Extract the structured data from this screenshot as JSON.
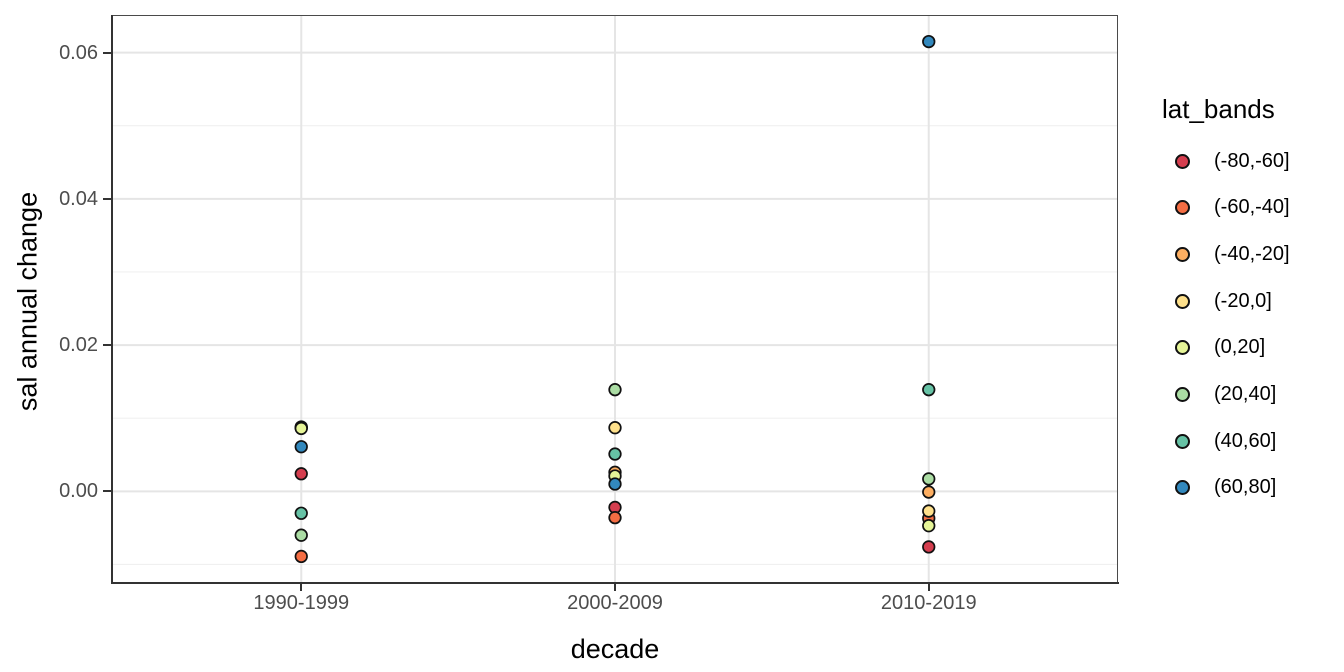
{
  "chart_data": {
    "type": "scatter",
    "title": "",
    "xlabel": "decade",
    "ylabel": "sal annual change",
    "legend_title": "lat_bands",
    "legend_position": "right",
    "grid": true,
    "categories": [
      "1990-1999",
      "2000-2009",
      "2010-2019"
    ],
    "series": [
      {
        "name": "(-80,-60]",
        "color": "#d53e4f",
        "values": [
          0.0024,
          -0.0022,
          -0.0076
        ]
      },
      {
        "name": "(-60,-40]",
        "color": "#f46d43",
        "values": [
          -0.0089,
          -0.0036,
          -0.0037
        ]
      },
      {
        "name": "(-40,-20]",
        "color": "#fdae61",
        "values": [
          0.0087,
          0.0026,
          -0.0001
        ]
      },
      {
        "name": "(-20,0]",
        "color": "#fee08b",
        "values": [
          0.0088,
          0.0087,
          -0.0027
        ]
      },
      {
        "name": "(0,20]",
        "color": "#e6f598",
        "values": [
          0.0086,
          0.0021,
          -0.0047
        ]
      },
      {
        "name": "(20,40]",
        "color": "#abdda4",
        "values": [
          -0.006,
          0.0139,
          0.0017
        ]
      },
      {
        "name": "(40,60]",
        "color": "#66c2a5",
        "values": [
          -0.003,
          0.0051,
          0.0139
        ]
      },
      {
        "name": "(60,80]",
        "color": "#3288bd",
        "values": [
          0.0061,
          0.001,
          0.0615
        ]
      }
    ],
    "y_ticks": [
      0.0,
      0.02,
      0.04,
      0.06
    ],
    "y_tick_labels": [
      "0.00",
      "0.02",
      "0.04",
      "0.06"
    ],
    "y_minor_ticks": [
      -0.01,
      0.01,
      0.03,
      0.05
    ],
    "ylim": [
      -0.0124,
      0.065
    ],
    "x_positions": [
      0.1875,
      0.5,
      0.8125
    ]
  },
  "style": {
    "background": "#ffffff",
    "grid_major": "#e5e5e5",
    "grid_minor": "#f0f0f0",
    "panel_border": "#4a4a4a",
    "axis_line": "#333333",
    "axis_text": "#4d4d4d",
    "title_text": "#000000",
    "point_stroke": "#111111"
  }
}
